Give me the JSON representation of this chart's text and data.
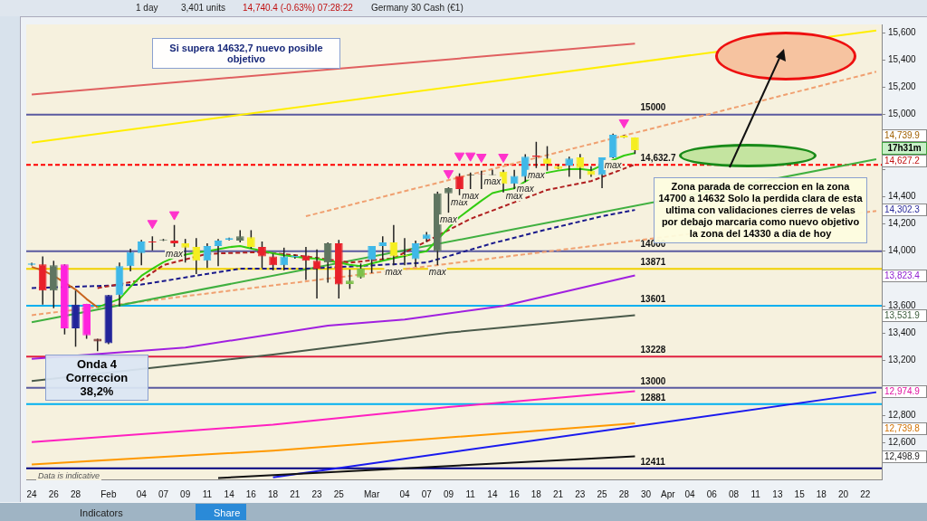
{
  "chart_data": {
    "type": "candlestick",
    "title": "Germany 30 Cash (€1)",
    "categories": [
      "24",
      null,
      "26",
      null,
      "28",
      null,
      null,
      "Feb",
      null,
      null,
      "04",
      null,
      "07",
      null,
      "09",
      null,
      "11",
      null,
      "14",
      null,
      "16",
      null,
      "18",
      null,
      "21",
      null,
      "23",
      null,
      "25",
      null,
      null,
      "Mar",
      null,
      null,
      "04",
      null,
      "07",
      null,
      "09",
      null,
      "11",
      null,
      "14",
      null,
      "16",
      null,
      "18",
      null,
      "21",
      null,
      "23",
      null,
      "25",
      null,
      "28",
      null,
      "30",
      null,
      "Apr",
      null,
      "04",
      null,
      "06",
      null,
      "08",
      null,
      "11",
      null,
      "13",
      null,
      "15",
      null,
      "18",
      null,
      "20",
      null,
      "22",
      null
    ],
    "ohlc": [
      [
        13900,
        13915,
        13895,
        13910
      ],
      [
        13904,
        13962,
        13609,
        13712
      ],
      [
        13712,
        13930,
        13583,
        13898
      ],
      [
        13904,
        13904,
        13391,
        13436
      ],
      [
        13436,
        13712,
        13301,
        13609
      ],
      [
        13615,
        13615,
        13359,
        13385
      ],
      [
        13359,
        13359,
        13269,
        13340
      ],
      [
        13327,
        13680,
        13320,
        13679
      ],
      [
        13679,
        13917,
        13596,
        13891
      ],
      [
        13891,
        14019,
        13853,
        13994
      ],
      [
        13987,
        14083,
        13898,
        14071
      ],
      [
        14071,
        14109,
        14006,
        14065
      ],
      [
        14080,
        14090,
        14075,
        14086
      ],
      [
        14077,
        14192,
        14032,
        14058
      ],
      [
        14058,
        14090,
        13917,
        14026
      ],
      [
        14032,
        14096,
        13833,
        13930
      ],
      [
        13930,
        14058,
        13878,
        14038
      ],
      [
        14038,
        14090,
        13891,
        14077
      ],
      [
        14083,
        14100,
        14080,
        14096
      ],
      [
        14077,
        14154,
        14064,
        14109
      ],
      [
        14102,
        14154,
        14019,
        14032
      ],
      [
        14032,
        14071,
        13878,
        13962
      ],
      [
        13962,
        13981,
        13860,
        13898
      ],
      [
        13898,
        14026,
        13860,
        13962
      ],
      [
        13955,
        13975,
        13945,
        13965
      ],
      [
        13968,
        14032,
        13789,
        13930
      ],
      [
        13930,
        14013,
        13654,
        13872
      ],
      [
        13917,
        14064,
        13770,
        14058
      ],
      [
        14058,
        14083,
        13654,
        13756
      ],
      [
        13760,
        13866,
        13724,
        13785
      ],
      [
        13808,
        13910,
        13800,
        13872
      ],
      [
        13936,
        14038,
        13840,
        14038
      ],
      [
        14038,
        14109,
        13936,
        14064
      ],
      [
        14064,
        14192,
        13898,
        13962
      ],
      [
        13970,
        14096,
        13898,
        13965
      ],
      [
        13942,
        14077,
        13885,
        14058
      ],
      [
        14090,
        14141,
        14070,
        14122
      ],
      [
        14000,
        14436,
        13898,
        14423
      ],
      [
        14423,
        14468,
        14282,
        14461
      ],
      [
        14551,
        14570,
        14410,
        14455
      ],
      [
        14555,
        14576,
        14455,
        14560
      ],
      [
        14566,
        14590,
        14455,
        14562
      ],
      [
        14558,
        14596,
        14558,
        14562
      ],
      [
        14583,
        14596,
        14430,
        14494
      ],
      [
        14494,
        14596,
        14455,
        14551
      ],
      [
        14545,
        14710,
        14506,
        14692
      ],
      [
        14700,
        14801,
        14609,
        14690
      ],
      [
        14679,
        14769,
        14590,
        14641
      ],
      [
        14622,
        14630,
        14600,
        14603
      ],
      [
        14628,
        14692,
        14545,
        14679
      ],
      [
        14686,
        14711,
        14530,
        14609
      ],
      [
        14590,
        14622,
        14545,
        14558
      ],
      [
        14558,
        14686,
        14462,
        14686
      ],
      [
        14686,
        14860,
        14680,
        14853
      ],
      [
        14846,
        14850,
        14830,
        14833
      ],
      [
        14833,
        14833,
        14712,
        14739.9
      ],
      null,
      null,
      null,
      null,
      null,
      null,
      null,
      null,
      null,
      null,
      null,
      null,
      null,
      null,
      null,
      null,
      null,
      null,
      null,
      null,
      null,
      null
    ],
    "colors": [
      "#3fb8e8",
      "#e8202a",
      "#5f7560",
      "#ff22dd",
      "#22249a",
      "#ff22dd",
      "#7a3030",
      "#22249a",
      "#3fb8e8",
      "#3fb8e8",
      "#3fb8e8",
      "#e8202a",
      "#5f7560",
      "#e8202a",
      "#f5ee20",
      "#f5ee20",
      "#3fb8e8",
      "#3fb8e8",
      "#3fb8e8",
      "#5f7560",
      "#f5ee20",
      "#e8202a",
      "#e8202a",
      "#3fb8e8",
      "#3fb8e8",
      "#e8202a",
      "#e8202a",
      "#5f7560",
      "#e8202a",
      "#7cc04a",
      "#7cc04a",
      "#3fb8e8",
      "#3fb8e8",
      "#f5ee20",
      "#f5ee20",
      "#3fb8e8",
      "#3fb8e8",
      "#5f7560",
      "#5f7560",
      "#e8202a",
      "#3a4a3a",
      "#e8202a",
      "#3a4a3a",
      "#f5ee20",
      "#3fb8e8",
      "#3fb8e8",
      "#e8202a",
      "#f5ee20",
      "#f5ee20",
      "#3fb8e8",
      "#f5ee20",
      "#f5ee20",
      "#3fb8e8",
      "#3fb8e8",
      "#f5ee20",
      "#f5ee20",
      null,
      null,
      null,
      null,
      null,
      null,
      null,
      null,
      null,
      null,
      null,
      null,
      null,
      null,
      null,
      null,
      null,
      null,
      null,
      null,
      null,
      null
    ],
    "value_labels": [
      null,
      null,
      null,
      null,
      null,
      null,
      null,
      null,
      null,
      null,
      null,
      null,
      null,
      "max",
      null,
      null,
      null,
      null,
      null,
      null,
      null,
      null,
      null,
      null,
      null,
      null,
      null,
      null,
      null,
      null,
      null,
      null,
      null,
      "max",
      null,
      null,
      null,
      "max",
      "max",
      "max",
      "max",
      null,
      "max",
      null,
      "max",
      "max",
      "max",
      null,
      null,
      null,
      null,
      null,
      null,
      "max",
      null,
      null,
      null,
      null,
      null,
      null,
      null,
      null,
      null,
      null,
      null,
      null,
      null,
      null,
      null,
      null,
      null,
      null,
      null,
      null,
      null,
      null,
      null,
      null
    ],
    "series": [
      {
        "type": "line",
        "color": "#c8641e",
        "values": [
          13885,
          13860,
          13820,
          null,
          13720,
          13650,
          13590,
          null,
          null,
          null,
          null,
          null,
          null,
          null,
          null,
          null,
          null,
          null,
          null,
          null,
          null,
          null,
          null,
          null,
          null,
          null,
          null,
          null,
          null,
          null,
          null,
          null,
          null,
          null,
          null,
          null,
          null,
          null,
          null,
          null,
          null,
          null,
          null,
          null,
          null,
          null,
          null,
          null,
          null,
          null,
          null,
          null,
          null,
          null,
          null,
          null,
          null,
          null,
          null,
          null,
          null,
          null,
          null,
          null,
          null,
          null,
          null,
          null,
          null,
          null,
          null,
          null,
          null,
          null,
          null,
          null,
          null,
          null
        ]
      },
      {
        "type": "line",
        "color": "#33cc11",
        "values": [
          null,
          null,
          null,
          null,
          null,
          null,
          13590,
          null,
          13650,
          13740,
          13820,
          13872,
          13920,
          13955,
          13975,
          13990,
          14000,
          14015,
          14030,
          14038,
          14020,
          null,
          13985,
          13970,
          13960,
          13950,
          13945,
          13930,
          13917,
          13900,
          13890,
          13910,
          13930,
          13949,
          13965,
          13985,
          14000,
          null,
          14170,
          14250,
          14310,
          14370,
          14425,
          14445,
          14460,
          14510,
          14558,
          14575,
          14590,
          14600,
          14603,
          14592,
          null,
          14667,
          14700,
          14718,
          null,
          null,
          null,
          null,
          null,
          null,
          null,
          null,
          null,
          null,
          null,
          null,
          null,
          null,
          null,
          null,
          null,
          null,
          null,
          null,
          null,
          null
        ]
      },
      {
        "type": "line",
        "color": "#b02020",
        "line_style": "dashed",
        "values": [
          null,
          null,
          null,
          null,
          null,
          null,
          13730,
          null,
          null,
          null,
          13788,
          null,
          13898,
          null,
          null,
          null,
          13981,
          null,
          null,
          null,
          null,
          13994,
          null,
          null,
          null,
          13962,
          null,
          null,
          null,
          13917,
          null,
          null,
          null,
          13949,
          null,
          null,
          null,
          null,
          null,
          null,
          14237,
          null,
          null,
          null,
          null,
          null,
          null,
          14449,
          null,
          null,
          null,
          14513,
          null,
          null,
          null,
          14635,
          null,
          null,
          null,
          null,
          null,
          null,
          null,
          null,
          null,
          null,
          null,
          null,
          null,
          null,
          null,
          null,
          null,
          null,
          null,
          null,
          null,
          null
        ]
      },
      {
        "type": "line",
        "color": "#1a1a8c",
        "line_style": "dashed",
        "values": [
          13730,
          null,
          null,
          null,
          null,
          13743,
          null,
          null,
          null,
          null,
          13756,
          null,
          null,
          null,
          13808,
          null,
          null,
          null,
          null,
          13872,
          null,
          null,
          null,
          null,
          null,
          13872,
          null,
          null,
          null,
          null,
          null,
          null,
          null,
          null,
          null,
          null,
          13917,
          null,
          null,
          null,
          null,
          null,
          14058,
          null,
          null,
          null,
          null,
          14160,
          null,
          null,
          null,
          null,
          14256,
          null,
          null,
          14302,
          null,
          null,
          null,
          null,
          null,
          null,
          null,
          null,
          null,
          null,
          null,
          null,
          null,
          null,
          null,
          null,
          null,
          null,
          null,
          null,
          null,
          null
        ]
      },
      {
        "type": "line",
        "color": "#a020e0",
        "values": [
          13212,
          null,
          null,
          null,
          null,
          null,
          null,
          null,
          null,
          null,
          null,
          null,
          null,
          null,
          13295,
          null,
          null,
          null,
          null,
          null,
          null,
          null,
          null,
          null,
          null,
          null,
          null,
          13455,
          null,
          null,
          null,
          null,
          null,
          null,
          13500,
          null,
          null,
          null,
          null,
          null,
          null,
          null,
          null,
          13600,
          null,
          null,
          null,
          null,
          null,
          null,
          null,
          null,
          null,
          null,
          null,
          13823,
          null,
          null,
          null,
          null,
          null,
          null,
          null,
          null,
          null,
          null,
          null,
          null,
          null,
          null,
          null,
          null,
          null,
          null,
          null,
          null,
          null,
          null
        ]
      },
      {
        "type": "line",
        "color": "#4a5a4a",
        "values": [
          13050,
          null,
          null,
          null,
          null,
          null,
          null,
          null,
          null,
          null,
          null,
          null,
          null,
          null,
          null,
          null,
          null,
          null,
          null,
          null,
          null,
          null,
          13244,
          null,
          null,
          null,
          null,
          null,
          null,
          null,
          null,
          null,
          null,
          null,
          null,
          null,
          null,
          null,
          13404,
          null,
          null,
          null,
          null,
          null,
          null,
          null,
          null,
          null,
          null,
          null,
          null,
          null,
          null,
          null,
          null,
          13532,
          null,
          null,
          null,
          null,
          null,
          null,
          null,
          null,
          null,
          null,
          null,
          null,
          null,
          null,
          null,
          null,
          null,
          null,
          null,
          null,
          null,
          null
        ]
      },
      {
        "type": "line",
        "color": "#ff20c0",
        "values": [
          12603,
          null,
          null,
          null,
          null,
          null,
          null,
          null,
          null,
          null,
          null,
          null,
          null,
          null,
          null,
          null,
          null,
          null,
          null,
          null,
          null,
          null,
          12731,
          null,
          null,
          null,
          null,
          null,
          null,
          null,
          null,
          null,
          null,
          null,
          null,
          null,
          null,
          null,
          12859,
          null,
          null,
          null,
          null,
          null,
          null,
          null,
          null,
          null,
          null,
          null,
          null,
          null,
          null,
          null,
          null,
          12975,
          null,
          null,
          null,
          null,
          null,
          null,
          null,
          null,
          null,
          null,
          null,
          null,
          null,
          null,
          null,
          null,
          null,
          null,
          null,
          null,
          null,
          null
        ]
      },
      {
        "type": "line",
        "color": "#ff9900",
        "values": [
          12440,
          null,
          null,
          null,
          null,
          null,
          null,
          null,
          null,
          null,
          null,
          null,
          null,
          null,
          null,
          null,
          null,
          null,
          null,
          null,
          null,
          null,
          12540,
          null,
          null,
          null,
          null,
          null,
          null,
          null,
          null,
          null,
          null,
          null,
          null,
          null,
          null,
          null,
          null,
          null,
          null,
          null,
          null,
          null,
          null,
          null,
          null,
          null,
          null,
          null,
          null,
          null,
          null,
          null,
          null,
          12740,
          null,
          null,
          null,
          null,
          null,
          null,
          null,
          null,
          null,
          null,
          null,
          null,
          null,
          null,
          null,
          null,
          null,
          null,
          null,
          null,
          null,
          null
        ]
      },
      {
        "type": "line",
        "color": "#111111",
        "values": [
          null,
          null,
          null,
          null,
          null,
          null,
          null,
          null,
          null,
          null,
          null,
          null,
          null,
          null,
          null,
          null,
          null,
          12340,
          null,
          null,
          null,
          null,
          null,
          null,
          null,
          null,
          null,
          null,
          null,
          null,
          null,
          null,
          null,
          null,
          null,
          null,
          null,
          null,
          null,
          null,
          null,
          null,
          null,
          null,
          null,
          null,
          null,
          null,
          null,
          null,
          null,
          null,
          null,
          null,
          null,
          12499,
          null,
          null,
          null,
          null,
          null,
          null,
          null,
          null,
          null,
          null,
          null,
          null,
          null,
          null,
          null,
          null,
          null,
          null,
          null,
          null,
          null,
          null
        ]
      },
      {
        "type": "line",
        "color": "#ffee00",
        "values": [
          14795,
          null,
          null,
          null,
          null,
          null,
          null,
          null,
          null,
          null,
          null,
          null,
          null,
          null,
          null,
          null,
          null,
          null,
          null,
          null,
          null,
          null,
          null,
          null,
          null,
          null,
          null,
          null,
          null,
          null,
          null,
          null,
          null,
          null,
          null,
          null,
          null,
          null,
          null,
          null,
          null,
          null,
          null,
          null,
          null,
          null,
          null,
          null,
          null,
          null,
          null,
          null,
          null,
          null,
          null,
          null,
          null,
          null,
          null,
          null,
          null,
          null,
          null,
          null,
          null,
          null,
          null,
          null,
          null,
          null,
          null,
          null,
          null,
          null,
          null,
          null,
          null,
          15615
        ]
      },
      {
        "type": "line",
        "color": "#1a1aee",
        "values": [
          null,
          null,
          null,
          null,
          null,
          null,
          null,
          null,
          null,
          null,
          null,
          null,
          null,
          null,
          null,
          null,
          null,
          null,
          null,
          null,
          null,
          null,
          12345,
          null,
          null,
          null,
          null,
          null,
          null,
          null,
          null,
          null,
          null,
          null,
          null,
          null,
          null,
          null,
          null,
          null,
          null,
          null,
          null,
          null,
          null,
          null,
          null,
          null,
          null,
          null,
          null,
          null,
          null,
          null,
          null,
          null,
          null,
          null,
          null,
          null,
          null,
          null,
          null,
          null,
          null,
          null,
          null,
          null,
          null,
          null,
          null,
          null,
          null,
          null,
          null,
          null,
          null,
          12968
        ]
      },
      {
        "type": "line",
        "color": "#e06060",
        "values": [
          15147,
          null,
          null,
          null,
          null,
          null,
          null,
          null,
          null,
          null,
          null,
          null,
          null,
          null,
          null,
          null,
          null,
          null,
          null,
          null,
          null,
          null,
          null,
          null,
          null,
          null,
          null,
          null,
          null,
          null,
          null,
          null,
          null,
          null,
          null,
          null,
          null,
          null,
          null,
          null,
          null,
          null,
          null,
          null,
          null,
          null,
          null,
          null,
          null,
          null,
          null,
          null,
          null,
          null,
          null,
          15519,
          null,
          null,
          null,
          null,
          null,
          null,
          null,
          null,
          null,
          null,
          null,
          null,
          null,
          null,
          null,
          null,
          null,
          null,
          null,
          null,
          null,
          null
        ]
      },
      {
        "type": "line",
        "color": "#40b040",
        "values": [
          13480,
          null,
          null,
          null,
          null,
          null,
          null,
          null,
          null,
          null,
          null,
          null,
          null,
          null,
          null,
          null,
          null,
          null,
          null,
          null,
          null,
          null,
          null,
          null,
          null,
          null,
          null,
          null,
          null,
          null,
          null,
          null,
          null,
          null,
          null,
          null,
          null,
          null,
          null,
          null,
          null,
          null,
          null,
          null,
          null,
          null,
          null,
          null,
          null,
          null,
          null,
          null,
          null,
          null,
          null,
          null,
          null,
          null,
          null,
          null,
          null,
          null,
          null,
          null,
          null,
          null,
          null,
          null,
          null,
          null,
          null,
          null,
          null,
          null,
          null,
          null,
          null,
          14673
        ]
      },
      {
        "type": "line",
        "color": "#f0a070",
        "line_style": "dashed",
        "values": [
          null,
          null,
          null,
          null,
          null,
          null,
          null,
          null,
          null,
          null,
          null,
          null,
          null,
          null,
          null,
          null,
          null,
          null,
          null,
          null,
          null,
          null,
          null,
          null,
          null,
          14256,
          null,
          null,
          null,
          null,
          null,
          null,
          null,
          null,
          null,
          null,
          null,
          null,
          null,
          null,
          null,
          null,
          null,
          null,
          null,
          null,
          null,
          null,
          null,
          null,
          null,
          null,
          null,
          null,
          null,
          null,
          null,
          null,
          null,
          null,
          null,
          null,
          null,
          null,
          null,
          null,
          null,
          null,
          null,
          null,
          null,
          null,
          null,
          null,
          null,
          null,
          null,
          15314
        ]
      },
      {
        "type": "line",
        "color": "#f0a070",
        "line_style": "dashed",
        "values": [
          13532,
          null,
          null,
          null,
          null,
          null,
          null,
          null,
          null,
          null,
          null,
          null,
          null,
          null,
          null,
          null,
          null,
          null,
          null,
          null,
          null,
          null,
          null,
          null,
          null,
          null,
          null,
          null,
          null,
          null,
          null,
          null,
          null,
          null,
          null,
          null,
          null,
          null,
          null,
          null,
          null,
          null,
          null,
          null,
          null,
          null,
          null,
          null,
          null,
          null,
          null,
          null,
          null,
          null,
          null,
          null,
          null,
          null,
          null,
          null,
          null,
          null,
          null,
          null,
          null,
          null,
          null,
          null,
          null,
          null,
          null,
          null,
          null,
          null,
          null,
          null,
          null,
          14295
        ]
      },
      {
        "type": "scatter",
        "color": "#ff33cc",
        "marker": "triangle",
        "values": [
          null,
          null,
          null,
          null,
          null,
          null,
          null,
          null,
          null,
          null,
          null,
          14205,
          null,
          14269,
          null,
          null,
          null,
          null,
          null,
          null,
          null,
          null,
          null,
          null,
          null,
          null,
          null,
          null,
          null,
          null,
          null,
          null,
          null,
          null,
          null,
          null,
          null,
          null,
          14570,
          14699,
          14699,
          14690,
          null,
          14690,
          null,
          null,
          null,
          null,
          null,
          null,
          null,
          null,
          null,
          null,
          14942,
          null,
          null,
          null,
          null,
          null,
          null,
          null,
          null,
          null,
          null,
          null,
          null,
          null,
          null,
          null,
          null,
          null,
          null,
          null,
          null,
          null,
          null,
          null
        ]
      }
    ],
    "ref_lines": [
      {
        "axis": "y",
        "value": 15000,
        "label": "15000",
        "color": "#5a5aa0"
      },
      {
        "axis": "y",
        "value": 14632.7,
        "label": "14,632.7",
        "color": "#ff0000",
        "line_style": "dashed"
      },
      {
        "axis": "y",
        "value": 14000,
        "label": "14000",
        "color": "#5a5aa0"
      },
      {
        "axis": "y",
        "value": 13871,
        "label": "13871",
        "color": "#f0d000"
      },
      {
        "axis": "y",
        "value": 13601,
        "label": "13601",
        "color": "#00b0f0"
      },
      {
        "axis": "y",
        "value": 13228,
        "label": "13228",
        "color": "#e02040"
      },
      {
        "axis": "y",
        "value": 13000,
        "label": "13000",
        "color": "#5a5aa0"
      },
      {
        "axis": "y",
        "value": 12881,
        "label": "12881",
        "color": "#00b0f0"
      },
      {
        "axis": "y",
        "value": 12411,
        "label": "12411",
        "color": "#000080"
      }
    ],
    "ylim": [
      12330,
      15660
    ],
    "yticks": [
      {
        "value": 12600,
        "label": "12,600"
      },
      {
        "value": 12800,
        "label": "12,800"
      },
      {
        "value": 13000,
        "label": null
      },
      {
        "value": 13200,
        "label": "13,200"
      },
      {
        "value": 13400,
        "label": "13,400"
      },
      {
        "value": 13600,
        "label": "13,600"
      },
      {
        "value": 13800,
        "label": null
      },
      {
        "value": 14000,
        "label": "14,000"
      },
      {
        "value": 14200,
        "label": "14,200"
      },
      {
        "value": 14400,
        "label": "14,400"
      },
      {
        "value": 14600,
        "label": null
      },
      {
        "value": 14800,
        "label": null
      },
      {
        "value": 15000,
        "label": "15,000"
      },
      {
        "value": 15200,
        "label": "15,200"
      },
      {
        "value": 15400,
        "label": "15,400"
      },
      {
        "value": 15600,
        "label": "15,600"
      }
    ],
    "marker": "none",
    "annotations": [
      "Si supera 14632,7 nuevo posible objetivo",
      "Onda 4\nCorreccion 38,2%",
      "Zona parada de correccion en la zona 14700 a 14632 Solo la perdida clara de esta ultima con validaciones cierres de velas por debajo marcaria como nuevo objetivo la zona del 14330 a dia de hoy",
      "17h31m",
      "Data is indicative",
      "1 day",
      "3,401 units",
      "14,740.4 (-0.63%) 07:28:22",
      "Indicators",
      "Share",
      "14,739.9",
      "14,627.2",
      "14,302.3",
      "13,823.4",
      "13,531.9",
      "12,974.9",
      "12,739.8",
      "12,498.9"
    ]
  }
}
